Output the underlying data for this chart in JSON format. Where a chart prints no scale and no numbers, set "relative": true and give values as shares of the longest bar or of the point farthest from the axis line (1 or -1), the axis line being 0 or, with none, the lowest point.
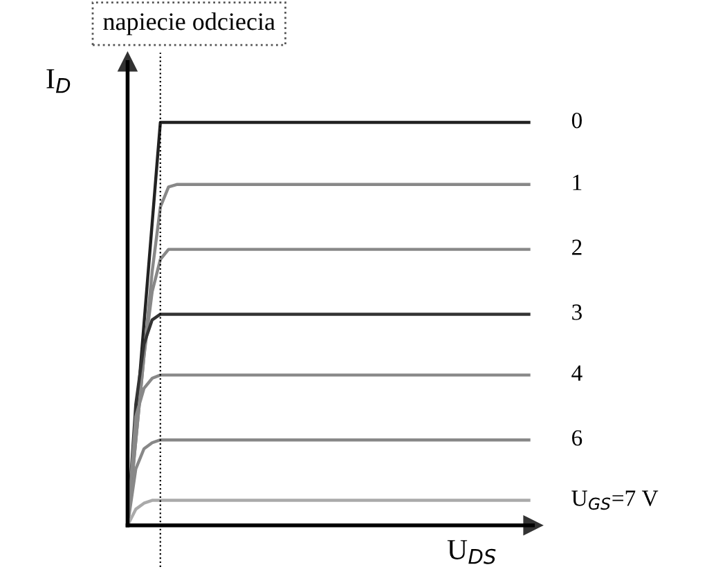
{
  "chart_data": {
    "type": "line",
    "relative": true,
    "xlabel": "U$_{DS}$",
    "ylabel": "I$_{D}$",
    "marker": "none",
    "line_style": "solid",
    "categories": [
      null,
      null,
      null,
      null,
      null,
      null,
      null,
      null,
      null,
      null,
      null,
      null,
      null,
      null,
      null,
      null,
      null,
      null,
      null,
      null,
      null,
      null,
      null,
      null,
      null,
      null,
      null,
      null,
      null,
      null,
      null,
      null,
      null,
      null,
      null,
      null,
      null,
      null,
      null,
      null,
      null,
      null,
      null,
      null,
      null,
      null,
      null,
      null,
      null,
      null
    ],
    "ref_lines": [
      {
        "axis": "x",
        "label": "napiecie odciecia",
        "color": "#000000",
        "line_style": "dotted"
      }
    ],
    "series": [
      {
        "name": "0",
        "color": "#222222",
        "values": [
          0,
          0.25,
          0.5,
          0.75,
          1,
          1,
          1,
          1,
          1,
          1,
          1,
          1,
          1,
          1,
          1,
          1,
          1,
          1,
          1,
          1,
          1,
          1,
          1,
          1,
          1,
          1,
          1,
          1,
          1,
          1,
          1,
          1,
          1,
          1,
          1,
          1,
          1,
          1,
          1,
          1,
          1,
          1,
          1,
          1,
          1,
          1,
          1,
          1,
          1,
          1
        ]
      },
      {
        "name": "1",
        "color": "#888888",
        "values": [
          0,
          0.21,
          0.42,
          0.63,
          0.79,
          0.84,
          0.846,
          0.846,
          0.846,
          0.846,
          0.846,
          0.846,
          0.846,
          0.846,
          0.846,
          0.846,
          0.846,
          0.846,
          0.846,
          0.846,
          0.846,
          0.846,
          0.846,
          0.846,
          0.846,
          0.846,
          0.846,
          0.846,
          0.846,
          0.846,
          0.846,
          0.846,
          0.846,
          0.846,
          0.846,
          0.846,
          0.846,
          0.846,
          0.846,
          0.846,
          0.846,
          0.846,
          0.846,
          0.846,
          0.846,
          0.846,
          0.846,
          0.846,
          0.846,
          0.846
        ]
      },
      {
        "name": "2",
        "color": "#888888",
        "values": [
          0,
          0.21,
          0.42,
          0.58,
          0.66,
          0.685,
          0.685,
          0.685,
          0.685,
          0.685,
          0.685,
          0.685,
          0.685,
          0.685,
          0.685,
          0.685,
          0.685,
          0.685,
          0.685,
          0.685,
          0.685,
          0.685,
          0.685,
          0.685,
          0.685,
          0.685,
          0.685,
          0.685,
          0.685,
          0.685,
          0.685,
          0.685,
          0.685,
          0.685,
          0.685,
          0.685,
          0.685,
          0.685,
          0.685,
          0.685,
          0.685,
          0.685,
          0.685,
          0.685,
          0.685,
          0.685,
          0.685,
          0.685,
          0.685,
          0.685
        ]
      },
      {
        "name": "3",
        "color": "#333333",
        "values": [
          0,
          0.3,
          0.45,
          0.51,
          0.524,
          0.524,
          0.524,
          0.524,
          0.524,
          0.524,
          0.524,
          0.524,
          0.524,
          0.524,
          0.524,
          0.524,
          0.524,
          0.524,
          0.524,
          0.524,
          0.524,
          0.524,
          0.524,
          0.524,
          0.524,
          0.524,
          0.524,
          0.524,
          0.524,
          0.524,
          0.524,
          0.524,
          0.524,
          0.524,
          0.524,
          0.524,
          0.524,
          0.524,
          0.524,
          0.524,
          0.524,
          0.524,
          0.524,
          0.524,
          0.524,
          0.524,
          0.524,
          0.524,
          0.524,
          0.524
        ]
      },
      {
        "name": "4",
        "color": "#888888",
        "values": [
          0,
          0.27,
          0.34,
          0.365,
          0.373,
          0.373,
          0.373,
          0.373,
          0.373,
          0.373,
          0.373,
          0.373,
          0.373,
          0.373,
          0.373,
          0.373,
          0.373,
          0.373,
          0.373,
          0.373,
          0.373,
          0.373,
          0.373,
          0.373,
          0.373,
          0.373,
          0.373,
          0.373,
          0.373,
          0.373,
          0.373,
          0.373,
          0.373,
          0.373,
          0.373,
          0.373,
          0.373,
          0.373,
          0.373,
          0.373,
          0.373,
          0.373,
          0.373,
          0.373,
          0.373,
          0.373,
          0.373,
          0.373,
          0.373,
          0.373
        ]
      },
      {
        "name": "6",
        "color": "#888888",
        "values": [
          0,
          0.14,
          0.19,
          0.205,
          0.212,
          0.212,
          0.212,
          0.212,
          0.212,
          0.212,
          0.212,
          0.212,
          0.212,
          0.212,
          0.212,
          0.212,
          0.212,
          0.212,
          0.212,
          0.212,
          0.212,
          0.212,
          0.212,
          0.212,
          0.212,
          0.212,
          0.212,
          0.212,
          0.212,
          0.212,
          0.212,
          0.212,
          0.212,
          0.212,
          0.212,
          0.212,
          0.212,
          0.212,
          0.212,
          0.212,
          0.212,
          0.212,
          0.212,
          0.212,
          0.212,
          0.212,
          0.212,
          0.212,
          0.212,
          0.212
        ]
      },
      {
        "name": "U$_{GS}$=7 V",
        "color": "#aaaaaa",
        "values": [
          0,
          0.04,
          0.055,
          0.062,
          0.062,
          0.062,
          0.062,
          0.062,
          0.062,
          0.062,
          0.062,
          0.062,
          0.062,
          0.062,
          0.062,
          0.062,
          0.062,
          0.062,
          0.062,
          0.062,
          0.062,
          0.062,
          0.062,
          0.062,
          0.062,
          0.062,
          0.062,
          0.062,
          0.062,
          0.062,
          0.062,
          0.062,
          0.062,
          0.062,
          0.062,
          0.062,
          0.062,
          0.062,
          0.062,
          0.062,
          0.062,
          0.062,
          0.062,
          0.062,
          0.062,
          0.062,
          0.062,
          0.062,
          0.062,
          0.062
        ]
      }
    ]
  }
}
